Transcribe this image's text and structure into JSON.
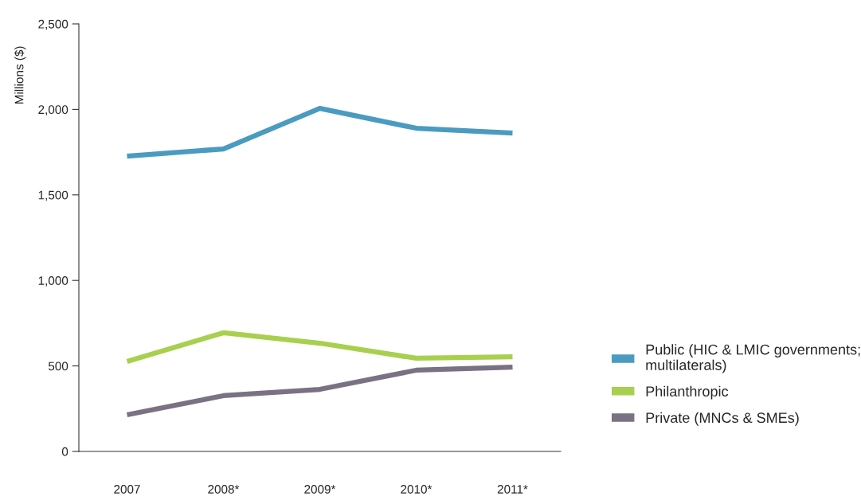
{
  "chart_data": {
    "type": "line",
    "ylabel": "Millions ($)",
    "categories": [
      "2007",
      "2008*",
      "2009*",
      "2010*",
      "2011*"
    ],
    "series": [
      {
        "name": "Public (HIC & LMIC governments;\nmultilaterals)",
        "color": "#4a9bbf",
        "values": [
          1727,
          1769,
          2006,
          1890,
          1862
        ]
      },
      {
        "name": "Philanthropic",
        "color": "#a8d04e",
        "values": [
          526,
          694,
          633,
          545,
          554
        ]
      },
      {
        "name": "Private (MNCs & SMEs)",
        "color": "#7a7283",
        "values": [
          214,
          326,
          363,
          475,
          493
        ]
      }
    ],
    "ylim": [
      0,
      2500
    ],
    "yticks": [
      {
        "value": 0,
        "label": "0"
      },
      {
        "value": 500,
        "label": "500"
      },
      {
        "value": 1000,
        "label": "1,000"
      },
      {
        "value": 1500,
        "label": "1,500"
      },
      {
        "value": 2000,
        "label": "2,000"
      },
      {
        "value": 2500,
        "label": "2,500"
      }
    ],
    "grid": false,
    "legend": "right",
    "marker": "none",
    "line_style": "solid"
  }
}
